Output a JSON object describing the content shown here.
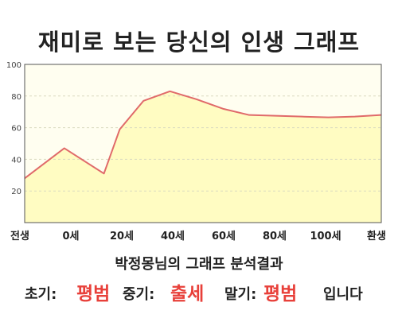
{
  "title": "재미로 보는 당신의 인생 그래프",
  "chart_data": {
    "type": "area",
    "x_tick_labels": [
      "전생",
      "0세",
      "20세",
      "40세",
      "60세",
      "80세",
      "100세",
      "환생"
    ],
    "y_ticks": [
      20,
      40,
      60,
      80,
      100
    ],
    "ylim": [
      0,
      100
    ],
    "xlim": [
      -15,
      120
    ],
    "grid": true,
    "series": [
      {
        "x": [
          -15,
          0,
          15,
          21,
          30,
          40,
          50,
          60,
          70,
          80,
          90,
          100,
          110,
          120
        ],
        "values": [
          28,
          47,
          31,
          59,
          77,
          83,
          78,
          72,
          68,
          67.5,
          67,
          66.5,
          67,
          68
        ]
      }
    ],
    "colors": {
      "fill": "#fffcc2",
      "line": "#e06a6a",
      "plot_bg": "#fffef0",
      "grid": "#d9d9c0"
    }
  },
  "result": {
    "heading": "박정몽님의 그래프 분석결과",
    "early_label": "초기:",
    "early_value": "평범",
    "middle_label": "중기:",
    "middle_value": "출세",
    "late_label": "말기:",
    "late_value": "평범",
    "suffix": "입니다",
    "accent_color": "#e8403a"
  }
}
